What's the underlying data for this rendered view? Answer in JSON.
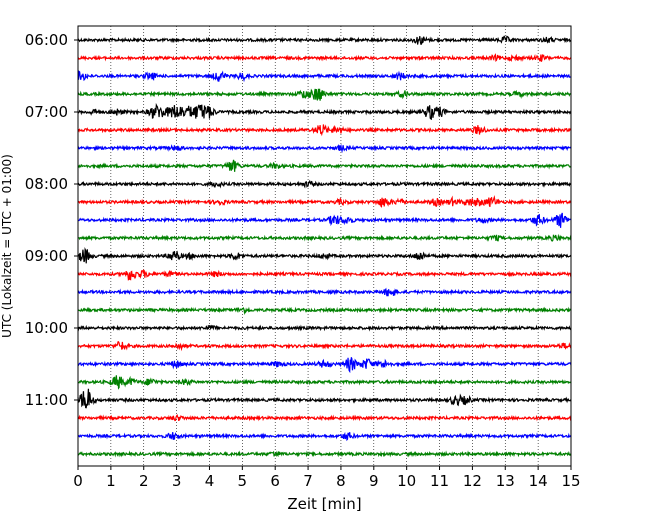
{
  "chart_data": {
    "type": "line",
    "title": "",
    "xlabel": "Zeit  [min]",
    "ylabel": "UTC (Lokalzeit = UTC + 01:00)",
    "xlim": [
      0,
      15
    ],
    "xticks": [
      0,
      1,
      2,
      3,
      4,
      5,
      6,
      7,
      8,
      9,
      10,
      11,
      12,
      13,
      14,
      15
    ],
    "xtick_labels": [
      "0",
      "1",
      "2",
      "3",
      "4",
      "5",
      "6",
      "7",
      "8",
      "9",
      "10",
      "11",
      "12",
      "13",
      "14",
      "15"
    ],
    "ytick_labels": [
      "06:00",
      "07:00",
      "08:00",
      "09:00",
      "10:00",
      "11:00"
    ],
    "ytick_trace_index": [
      0,
      4,
      8,
      12,
      16,
      20
    ],
    "grid": "vertical dotted",
    "colors": [
      "#000000",
      "#ff0000",
      "#0000ff",
      "#008000"
    ],
    "traces": [
      {
        "start": "06:00",
        "color": "#000000",
        "events": [
          [
            10.4,
            4
          ],
          [
            13.0,
            2.5
          ],
          [
            14.3,
            2
          ]
        ]
      },
      {
        "start": "06:15",
        "color": "#ff0000",
        "events": [
          [
            12.7,
            2
          ],
          [
            13.3,
            2
          ],
          [
            14.1,
            2.5
          ]
        ]
      },
      {
        "start": "06:30",
        "color": "#0000ff",
        "events": [
          [
            0.1,
            4
          ],
          [
            2.2,
            3
          ],
          [
            4.3,
            4.5
          ],
          [
            5.0,
            3
          ],
          [
            9.8,
            3
          ]
        ]
      },
      {
        "start": "06:45",
        "color": "#008000",
        "events": [
          [
            7.3,
            7
          ],
          [
            6.9,
            4
          ],
          [
            9.9,
            2.5
          ],
          [
            13.4,
            2
          ]
        ]
      },
      {
        "start": "07:00",
        "color": "#000000",
        "events": [
          [
            0.5,
            2
          ],
          [
            1.2,
            2.5
          ],
          [
            2.3,
            4.5
          ],
          [
            2.5,
            4.5
          ],
          [
            2.8,
            3
          ],
          [
            3.0,
            5.5
          ],
          [
            3.3,
            5
          ],
          [
            3.6,
            5
          ],
          [
            3.8,
            4.5
          ],
          [
            4.0,
            4.5
          ],
          [
            10.7,
            6
          ],
          [
            11.0,
            4
          ]
        ]
      },
      {
        "start": "07:15",
        "color": "#ff0000",
        "events": [
          [
            7.4,
            5
          ],
          [
            7.9,
            3
          ],
          [
            12.2,
            4
          ]
        ]
      },
      {
        "start": "07:30",
        "color": "#0000ff",
        "events": [
          [
            3.0,
            2
          ],
          [
            8.0,
            2
          ]
        ]
      },
      {
        "start": "07:45",
        "color": "#008000",
        "events": [
          [
            4.7,
            5.5
          ],
          [
            6.0,
            2
          ]
        ]
      },
      {
        "start": "08:00",
        "color": "#000000",
        "events": [
          [
            4.2,
            2
          ],
          [
            7.0,
            2
          ]
        ]
      },
      {
        "start": "08:15",
        "color": "#ff0000",
        "events": [
          [
            4.3,
            2.5
          ],
          [
            8.0,
            2
          ],
          [
            9.3,
            4.5
          ],
          [
            9.8,
            2.5
          ],
          [
            10.9,
            3
          ],
          [
            11.4,
            3
          ],
          [
            11.9,
            3
          ],
          [
            12.6,
            4.5
          ],
          [
            12.2,
            3
          ]
        ]
      },
      {
        "start": "08:30",
        "color": "#0000ff",
        "events": [
          [
            7.8,
            4.5
          ],
          [
            8.2,
            3
          ],
          [
            12.3,
            2
          ],
          [
            14.0,
            3
          ],
          [
            14.7,
            7
          ],
          [
            14.0,
            2
          ]
        ]
      },
      {
        "start": "08:45",
        "color": "#008000",
        "events": [
          [
            12.7,
            2
          ],
          [
            14.5,
            2
          ]
        ]
      },
      {
        "start": "09:00",
        "color": "#000000",
        "events": [
          [
            0.2,
            7
          ],
          [
            2.9,
            5
          ],
          [
            3.4,
            2
          ],
          [
            4.8,
            3
          ],
          [
            7.5,
            2
          ],
          [
            10.4,
            4
          ]
        ]
      },
      {
        "start": "09:15",
        "color": "#ff0000",
        "events": [
          [
            1.6,
            5.5
          ],
          [
            2.0,
            3
          ],
          [
            2.8,
            2
          ],
          [
            4.2,
            2
          ]
        ]
      },
      {
        "start": "09:30",
        "color": "#0000ff",
        "events": [
          [
            9.5,
            4.5
          ]
        ]
      },
      {
        "start": "09:45",
        "color": "#008000",
        "events": [
          [
            5.0,
            2
          ]
        ]
      },
      {
        "start": "10:00",
        "color": "#000000",
        "events": [
          [
            4.0,
            2
          ]
        ]
      },
      {
        "start": "10:15",
        "color": "#ff0000",
        "events": [
          [
            1.3,
            4
          ],
          [
            3.1,
            2
          ],
          [
            14.8,
            2
          ]
        ]
      },
      {
        "start": "10:30",
        "color": "#0000ff",
        "events": [
          [
            3.0,
            3
          ],
          [
            6.1,
            2.5
          ],
          [
            7.5,
            3
          ],
          [
            8.3,
            6.5
          ],
          [
            8.8,
            5
          ],
          [
            9.3,
            3
          ]
        ]
      },
      {
        "start": "10:45",
        "color": "#008000",
        "events": [
          [
            1.2,
            6
          ],
          [
            1.6,
            3
          ],
          [
            2.2,
            3
          ],
          [
            3.3,
            2
          ]
        ]
      },
      {
        "start": "11:00",
        "color": "#000000",
        "events": [
          [
            0.25,
            12
          ],
          [
            11.5,
            4
          ],
          [
            11.8,
            3
          ]
        ]
      },
      {
        "start": "11:15",
        "color": "#ff0000",
        "events": [
          [
            3.0,
            2
          ]
        ]
      },
      {
        "start": "11:30",
        "color": "#0000ff",
        "events": [
          [
            2.9,
            3
          ],
          [
            8.2,
            3
          ]
        ]
      },
      {
        "start": "11:45",
        "color": "#008000",
        "events": [
          [
            6.0,
            2
          ]
        ]
      }
    ]
  }
}
